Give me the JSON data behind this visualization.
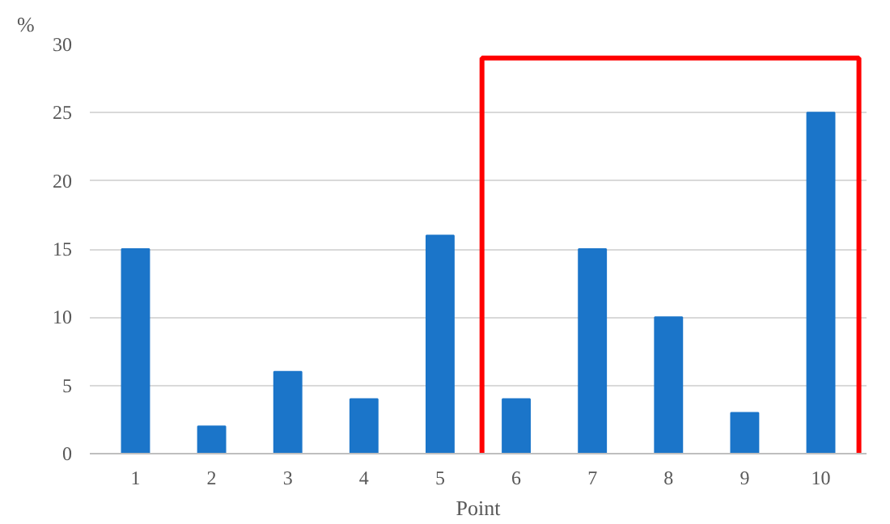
{
  "chart_data": {
    "type": "bar",
    "xlabel": "Point",
    "ylabel": "%",
    "categories": [
      "1",
      "2",
      "3",
      "4",
      "5",
      "6",
      "7",
      "8",
      "9",
      "10"
    ],
    "values": [
      15,
      2,
      6,
      4,
      16,
      4,
      15,
      10,
      3,
      25
    ],
    "color": "#1b75c9",
    "ylim": [
      0,
      30
    ],
    "yticks": [
      0,
      5,
      10,
      15,
      20,
      25,
      30
    ],
    "grid": "y"
  }
}
